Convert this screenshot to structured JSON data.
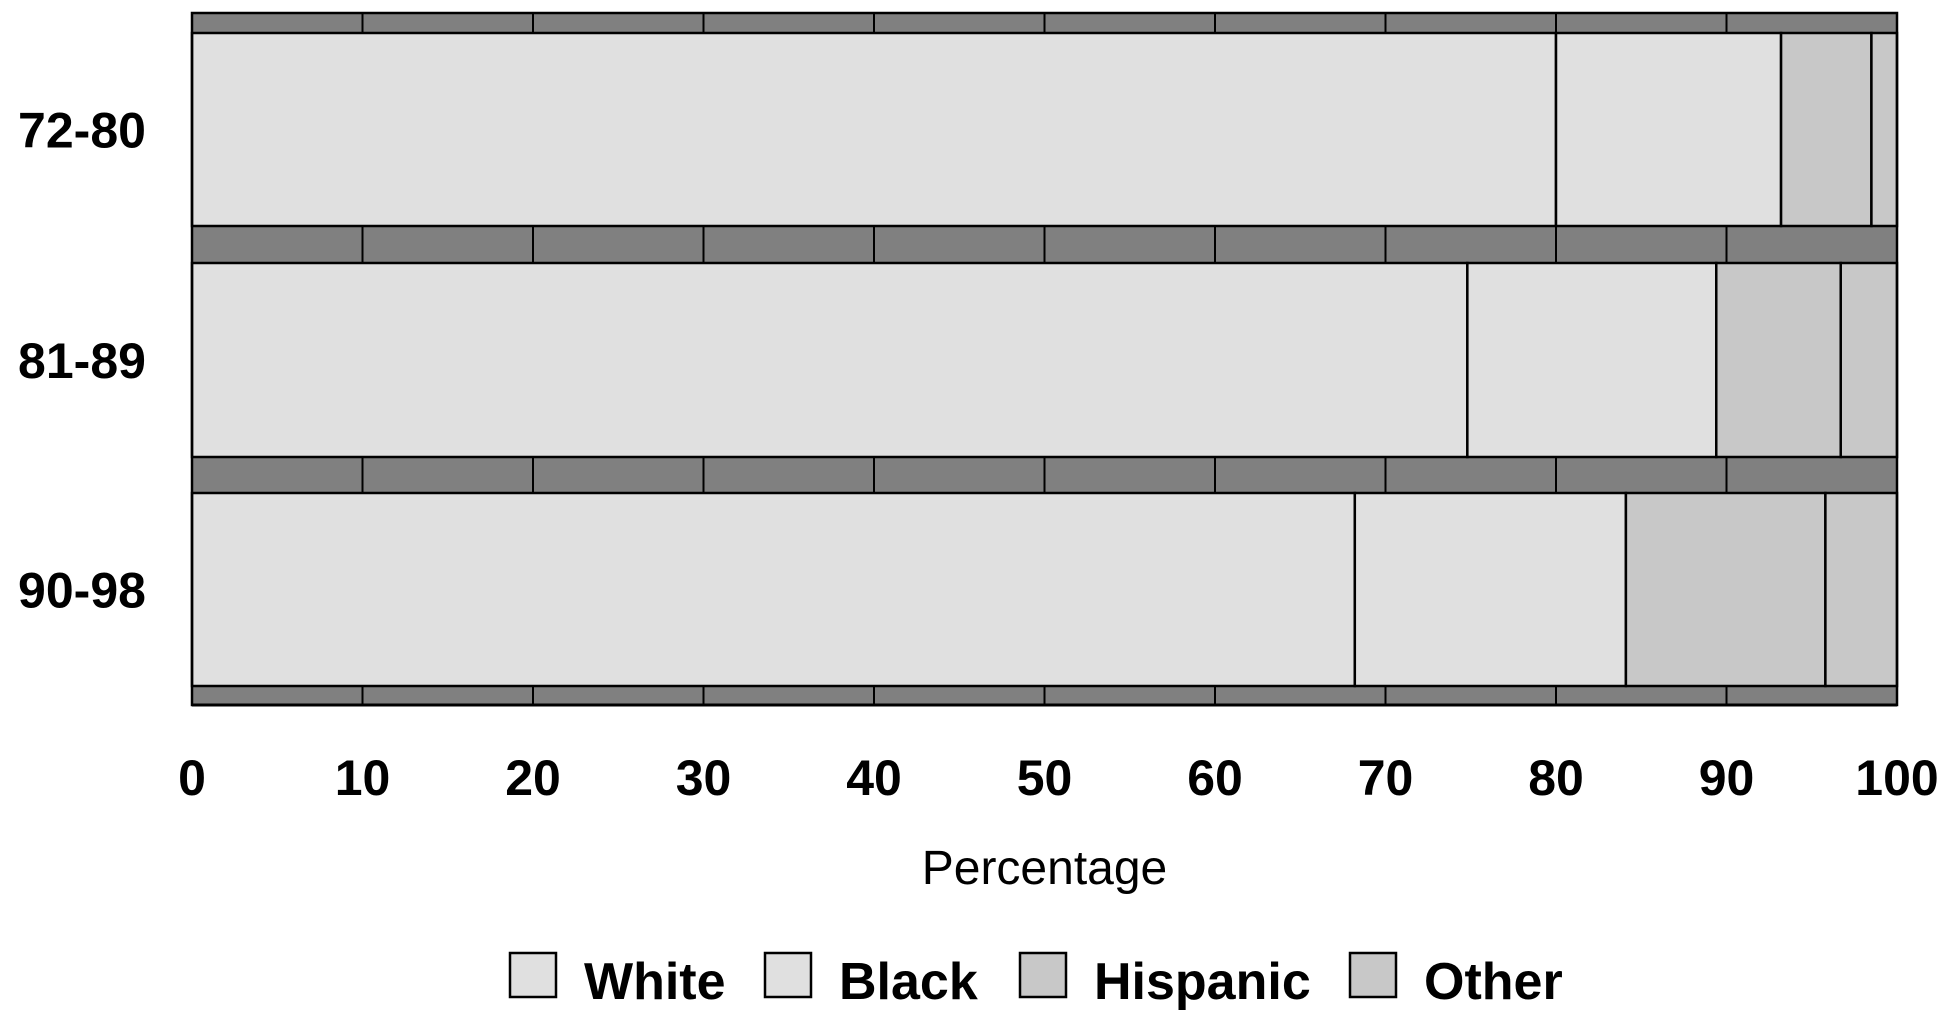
{
  "chart_data": {
    "type": "bar",
    "orientation": "horizontal",
    "stacked": true,
    "categories": [
      "72-80",
      "81-89",
      "90-98"
    ],
    "series": [
      {
        "name": "White",
        "values": [
          80.0,
          74.8,
          68.2
        ],
        "color": "#e0e0e0"
      },
      {
        "name": "Black",
        "values": [
          13.2,
          14.6,
          15.9
        ],
        "color": "#e0e0e0"
      },
      {
        "name": "Hispanic",
        "values": [
          5.3,
          7.3,
          11.7
        ],
        "color": "#c8c8c8"
      },
      {
        "name": "Other",
        "values": [
          1.5,
          3.3,
          4.2
        ],
        "color": "#c8c8c8"
      }
    ],
    "xlabel": "Percentage",
    "ylabel": "",
    "xlim": [
      0,
      100
    ],
    "xticks": [
      "0",
      "10",
      "20",
      "30",
      "40",
      "50",
      "60",
      "70",
      "80",
      "90",
      "100"
    ],
    "grid": false,
    "separator_color": "#808080",
    "legend": "bottom"
  }
}
